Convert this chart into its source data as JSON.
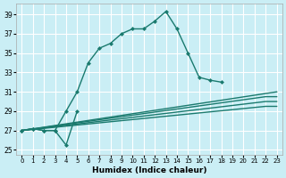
{
  "xlabel": "Humidex (Indice chaleur)",
  "background_color": "#caeef5",
  "line_color": "#1a7a6e",
  "grid_color": "#ffffff",
  "xlim": [
    -0.5,
    23.5
  ],
  "ylim": [
    24.5,
    40.1
  ],
  "xticks": [
    0,
    1,
    2,
    3,
    4,
    5,
    6,
    7,
    8,
    9,
    10,
    11,
    12,
    13,
    14,
    15,
    16,
    17,
    18,
    19,
    20,
    21,
    22,
    23
  ],
  "yticks": [
    25,
    27,
    29,
    31,
    33,
    35,
    37,
    39
  ],
  "curve_marked_x": [
    0,
    1,
    2,
    3,
    4,
    5,
    6,
    7,
    8,
    9,
    10,
    11,
    12,
    13,
    14,
    15,
    16,
    17,
    18
  ],
  "curve_marked_y": [
    27.0,
    27.2,
    27.0,
    27.0,
    29.0,
    31.0,
    34.0,
    35.5,
    36.0,
    37.0,
    37.5,
    37.5,
    38.3,
    39.3,
    37.5,
    35.0,
    32.5,
    32.2,
    32.0
  ],
  "curve_dip_x": [
    0,
    1,
    2,
    3,
    4,
    5
  ],
  "curve_dip_y": [
    27.0,
    27.2,
    27.0,
    27.0,
    25.5,
    29.0
  ],
  "line1_x": [
    0,
    23
  ],
  "line1_y": [
    27.0,
    31.0
  ],
  "line2_x": [
    0,
    22,
    23
  ],
  "line2_y": [
    27.0,
    30.5,
    30.5
  ],
  "line3_x": [
    0,
    22,
    23
  ],
  "line3_y": [
    27.0,
    30.0,
    30.0
  ],
  "line4_x": [
    0,
    22,
    23
  ],
  "line4_y": [
    27.0,
    29.5,
    29.5
  ]
}
